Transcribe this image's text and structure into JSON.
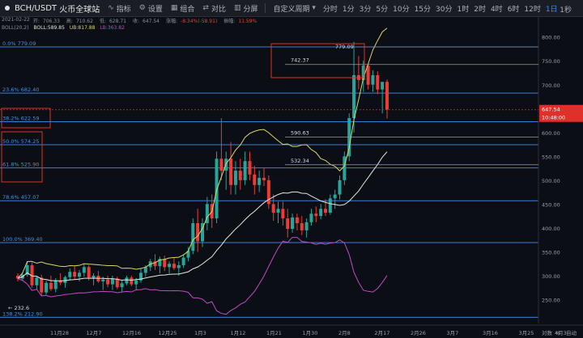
{
  "toolbar": {
    "symbol": "BCH/USDT",
    "exchange": "火币全球站",
    "indicators_label": "指标",
    "settings_label": "设置",
    "combine_label": "组合",
    "compare_label": "对比",
    "split_label": "分屏",
    "custom_period_label": "自定义周期",
    "timeframes": [
      "分时",
      "1分",
      "3分",
      "5分",
      "10分",
      "15分",
      "30分",
      "1时",
      "2时",
      "4时",
      "6时",
      "12时",
      "1日"
    ],
    "active_timeframe": "1日",
    "right_timeframe": "1秒"
  },
  "info": {
    "date": "2021-02-22",
    "open_label": "开:",
    "open": "706.33",
    "high_label": "高:",
    "high": "710.62",
    "low_label": "低:",
    "low": "628.71",
    "close_label": "收:",
    "close": "647.54",
    "change_label": "涨幅:",
    "change": "-8.34%(-58.91)",
    "amplitude_label": "振幅:",
    "amplitude": "11.59%"
  },
  "boll": {
    "title": "BOLL(20,2)",
    "mid": "BOLL:589.85",
    "ub": "UB:817.88",
    "lb": "LB:363.82"
  },
  "fib_levels": [
    {
      "label": "0.0% 779.09",
      "price": 779.09
    },
    {
      "label": "23.6% 682.40",
      "price": 682.4
    },
    {
      "label": "38.2% 622.59",
      "price": 622.59
    },
    {
      "label": "50.0% 574.25",
      "price": 574.25
    },
    {
      "label": "61.8% 525.90",
      "price": 525.9
    },
    {
      "label": "78.6% 457.07",
      "price": 457.07
    },
    {
      "label": "100.0% 369.40",
      "price": 369.4
    },
    {
      "label": "138.2% 212.90",
      "price": 212.9
    }
  ],
  "annotations": [
    {
      "text": "779.09",
      "price": 779.09
    },
    {
      "text": "742.37",
      "price": 742.37
    },
    {
      "text": "590.63",
      "price": 590.63
    },
    {
      "text": "532.34",
      "price": 532.34
    },
    {
      "text": "232.6",
      "price": 232.6
    }
  ],
  "price_axis": {
    "ticks": [
      "800.00",
      "750.00",
      "700.00",
      "650.00",
      "600.00",
      "550.00",
      "500.00",
      "450.00",
      "400.00",
      "350.00",
      "300.00",
      "250.00"
    ],
    "tick_values": [
      800,
      750,
      700,
      650,
      600,
      550,
      500,
      450,
      400,
      350,
      300,
      250
    ],
    "current_price": "647.54",
    "countdown": "10:48:00"
  },
  "date_axis": [
    "11月28",
    "12月7",
    "12月16",
    "12月25",
    "1月3",
    "1月12",
    "1月21",
    "1月30",
    "2月8",
    "2月17",
    "2月26",
    "3月7",
    "3月16",
    "3月25",
    "4月3"
  ],
  "footer": {
    "log_label": "对数",
    "pct_label": "%",
    "auto_label": "自动"
  },
  "colors": {
    "up": "#26a69a",
    "down": "#ef3b36",
    "fib": "#3b7fd9",
    "boll_upper": "#d9d76a",
    "boll_mid": "#e8e8e0",
    "boll_lower": "#c04ac8",
    "highlight": "#e0302a",
    "price_tag": "#e0302a"
  },
  "chart_data": {
    "type": "candlestick",
    "title": "BCH/USDT",
    "candles": [
      [
        300,
        305,
        288,
        294
      ],
      [
        294,
        306,
        290,
        302
      ],
      [
        302,
        330,
        298,
        322
      ],
      [
        322,
        328,
        275,
        280
      ],
      [
        280,
        300,
        270,
        296
      ],
      [
        296,
        302,
        258,
        265
      ],
      [
        265,
        290,
        260,
        285
      ],
      [
        285,
        300,
        268,
        272
      ],
      [
        272,
        295,
        265,
        290
      ],
      [
        290,
        305,
        280,
        285
      ],
      [
        285,
        300,
        275,
        297
      ],
      [
        297,
        315,
        290,
        308
      ],
      [
        308,
        320,
        292,
        298
      ],
      [
        298,
        312,
        288,
        306
      ],
      [
        306,
        325,
        298,
        318
      ],
      [
        318,
        322,
        290,
        296
      ],
      [
        296,
        305,
        280,
        300
      ],
      [
        300,
        310,
        285,
        288
      ],
      [
        288,
        298,
        270,
        292
      ],
      [
        292,
        300,
        276,
        282
      ],
      [
        282,
        300,
        270,
        294
      ],
      [
        294,
        298,
        272,
        276
      ],
      [
        276,
        290,
        265,
        284
      ],
      [
        284,
        300,
        280,
        296
      ],
      [
        296,
        300,
        278,
        282
      ],
      [
        282,
        295,
        270,
        290
      ],
      [
        290,
        315,
        285,
        306
      ],
      [
        306,
        322,
        298,
        318
      ],
      [
        318,
        335,
        310,
        330
      ],
      [
        330,
        345,
        312,
        320
      ],
      [
        320,
        340,
        305,
        335
      ],
      [
        335,
        342,
        310,
        318
      ],
      [
        318,
        330,
        305,
        325
      ],
      [
        325,
        338,
        312,
        316
      ],
      [
        316,
        330,
        300,
        322
      ],
      [
        322,
        345,
        316,
        338
      ],
      [
        338,
        360,
        330,
        352
      ],
      [
        352,
        420,
        345,
        410
      ],
      [
        410,
        440,
        350,
        372
      ],
      [
        372,
        420,
        360,
        410
      ],
      [
        410,
        465,
        395,
        450
      ],
      [
        450,
        470,
        400,
        420
      ],
      [
        420,
        560,
        410,
        545
      ],
      [
        545,
        630,
        500,
        520
      ],
      [
        520,
        560,
        480,
        545
      ],
      [
        545,
        580,
        470,
        490
      ],
      [
        490,
        540,
        470,
        520
      ],
      [
        520,
        545,
        480,
        500
      ],
      [
        500,
        560,
        490,
        540
      ],
      [
        540,
        560,
        500,
        512
      ],
      [
        512,
        530,
        470,
        490
      ],
      [
        490,
        520,
        475,
        505
      ],
      [
        505,
        525,
        488,
        500
      ],
      [
        500,
        510,
        440,
        450
      ],
      [
        450,
        470,
        415,
        432
      ],
      [
        432,
        455,
        410,
        440
      ],
      [
        440,
        455,
        405,
        420
      ],
      [
        420,
        440,
        380,
        398
      ],
      [
        398,
        430,
        390,
        422
      ],
      [
        422,
        430,
        395,
        410
      ],
      [
        410,
        425,
        385,
        395
      ],
      [
        395,
        420,
        380,
        412
      ],
      [
        412,
        440,
        405,
        430
      ],
      [
        430,
        445,
        412,
        425
      ],
      [
        425,
        450,
        418,
        440
      ],
      [
        440,
        460,
        425,
        432
      ],
      [
        432,
        470,
        428,
        462
      ],
      [
        462,
        480,
        440,
        470
      ],
      [
        470,
        510,
        460,
        500
      ],
      [
        500,
        560,
        490,
        550
      ],
      [
        550,
        640,
        540,
        630
      ],
      [
        630,
        790,
        600,
        720
      ],
      [
        720,
        760,
        690,
        710
      ],
      [
        710,
        750,
        685,
        740
      ],
      [
        740,
        745,
        690,
        700
      ],
      [
        700,
        730,
        685,
        720
      ],
      [
        720,
        728,
        680,
        690
      ],
      [
        690,
        700,
        640,
        706
      ],
      [
        706,
        711,
        629,
        648
      ]
    ],
    "ylim": [
      200,
      830
    ]
  }
}
